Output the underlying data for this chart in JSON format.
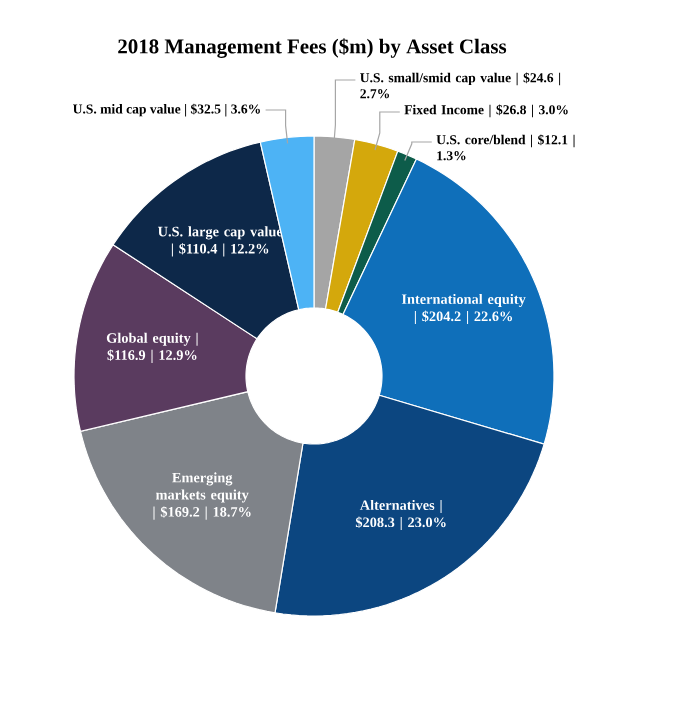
{
  "chart_data": {
    "type": "donut",
    "title": "2018 Management Fees ($m) by Asset Class",
    "categories": [
      "U.S. small/smid cap value | $24.6 | 2.7%",
      "Fixed Income | $26.8 | 3.0%",
      "U.S. core/blend | $12.1 | 1.3%",
      "International equity | $204.2 | 22.6%",
      "Alternatives | $208.3 | 23.0%",
      "Emerging markets equity | $169.2 | 18.7%",
      "Global equity | $116.9 | 12.9%",
      "U.S. large cap value | $110.4 | 12.2%",
      "U.S. mid cap value | $32.5 | 3.6%"
    ],
    "values": [
      24.6,
      26.8,
      12.1,
      204.2,
      208.3,
      169.2,
      116.9,
      110.4,
      32.5
    ],
    "colors": [
      "#a5a5a5",
      "#d4a80c",
      "#0d5c4a",
      "#0f6fba",
      "#0c4680",
      "#7f8389",
      "#5a3b5f",
      "#0d2849",
      "#4db3f5"
    ]
  }
}
